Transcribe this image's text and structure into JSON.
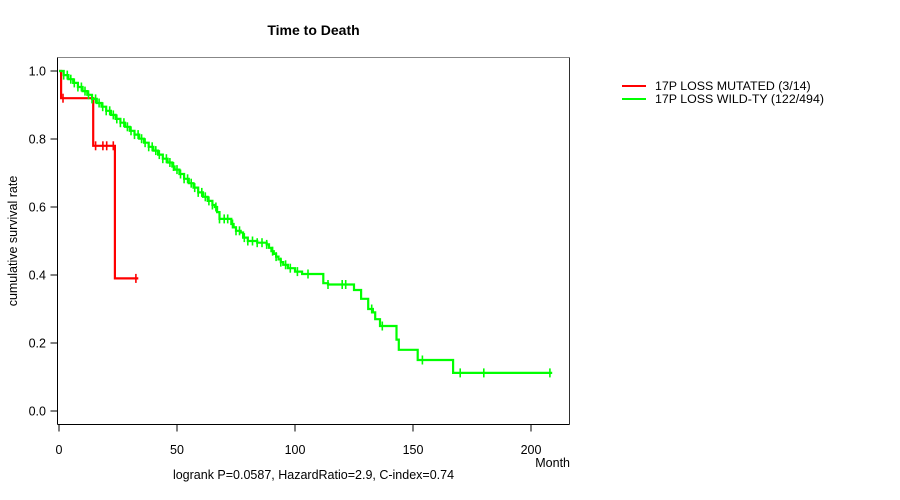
{
  "chart_data": {
    "type": "line",
    "variant": "kaplan_meier_step",
    "title": "Time to Death",
    "xlabel": "Month",
    "ylabel": "cumulative survival rate",
    "footnote": "logrank P=0.0587, HazardRatio=2.9, C-index=0.74",
    "xlim": [
      0,
      216
    ],
    "ylim": [
      0.0,
      1.0
    ],
    "grid": false,
    "legend_position": "right-outside",
    "x_ticks": [
      0,
      50,
      100,
      150,
      200
    ],
    "x_tick_labels": [
      "0",
      "50",
      "100",
      "150",
      "200"
    ],
    "y_ticks": [
      1.0,
      0.8,
      0.6,
      0.4,
      0.2,
      0.0
    ],
    "y_tick_labels": [
      "1.0",
      "0.8",
      "0.6",
      "0.4",
      "0.2",
      "0.0"
    ],
    "axis_colors": {
      "left": "#000000",
      "bottom": "#000000",
      "top": "#878787",
      "right": "#2f2f2f"
    },
    "series": [
      {
        "key": "mutated",
        "name": "17P LOSS MUTATED (3/14)",
        "color": "#ff0000",
        "steps": [
          [
            0,
            1.0
          ],
          [
            0.9,
            0.92
          ],
          [
            14.5,
            0.78
          ],
          [
            23.7,
            0.39
          ],
          [
            33.6,
            0.39
          ]
        ],
        "censor_months": [
          1.7,
          15.5,
          18.6,
          20.2,
          23.0,
          32.6
        ]
      },
      {
        "key": "wildtype",
        "name": "17P LOSS WILD-TY (122/494)",
        "color": "#00ff00",
        "steps": [
          [
            0,
            1.0
          ],
          [
            2,
            0.988
          ],
          [
            4,
            0.976
          ],
          [
            6,
            0.965
          ],
          [
            8,
            0.953
          ],
          [
            10,
            0.941
          ],
          [
            12,
            0.93
          ],
          [
            14,
            0.918
          ],
          [
            16,
            0.906
          ],
          [
            18,
            0.895
          ],
          [
            20,
            0.883
          ],
          [
            22,
            0.871
          ],
          [
            24,
            0.859
          ],
          [
            26,
            0.848
          ],
          [
            28,
            0.836
          ],
          [
            30,
            0.824
          ],
          [
            32,
            0.813
          ],
          [
            34,
            0.801
          ],
          [
            36,
            0.789
          ],
          [
            38,
            0.777
          ],
          [
            40,
            0.766
          ],
          [
            42,
            0.754
          ],
          [
            44,
            0.742
          ],
          [
            46,
            0.731
          ],
          [
            48,
            0.719
          ],
          [
            49,
            0.71
          ],
          [
            51,
            0.697
          ],
          [
            53,
            0.683
          ],
          [
            55,
            0.67
          ],
          [
            57,
            0.657
          ],
          [
            59,
            0.643
          ],
          [
            61,
            0.63
          ],
          [
            63,
            0.618
          ],
          [
            65,
            0.606
          ],
          [
            66,
            0.6
          ],
          [
            67,
            0.585
          ],
          [
            68,
            0.565
          ],
          [
            73,
            0.55
          ],
          [
            74,
            0.54
          ],
          [
            75,
            0.53
          ],
          [
            77,
            0.525
          ],
          [
            78,
            0.51
          ],
          [
            80,
            0.5
          ],
          [
            84,
            0.495
          ],
          [
            88,
            0.49
          ],
          [
            89,
            0.48
          ],
          [
            90,
            0.47
          ],
          [
            91,
            0.462
          ],
          [
            92,
            0.454
          ],
          [
            93,
            0.446
          ],
          [
            94,
            0.438
          ],
          [
            95,
            0.43
          ],
          [
            97,
            0.42
          ],
          [
            100,
            0.41
          ],
          [
            103,
            0.403
          ],
          [
            112,
            0.376
          ],
          [
            114,
            0.372
          ],
          [
            125,
            0.356
          ],
          [
            128,
            0.33
          ],
          [
            131,
            0.3
          ],
          [
            133,
            0.29
          ],
          [
            134,
            0.27
          ],
          [
            136,
            0.25
          ],
          [
            143,
            0.21
          ],
          [
            144,
            0.18
          ],
          [
            152,
            0.15
          ],
          [
            167,
            0.112
          ],
          [
            209,
            0.112
          ]
        ],
        "censor_months": [
          2,
          3.5,
          5,
          6.5,
          8,
          9.5,
          11,
          12.5,
          14,
          15.5,
          17,
          18.5,
          20,
          21.5,
          23,
          24.5,
          26,
          27.5,
          29,
          30.5,
          32,
          33.5,
          35,
          36.5,
          38,
          39.5,
          41,
          42.5,
          44,
          45.5,
          47,
          48.5,
          50,
          51.5,
          53,
          54.5,
          56,
          57.5,
          59,
          60.5,
          62,
          63.5,
          65,
          66.5,
          68,
          70,
          71.5,
          73.5,
          75,
          76.5,
          78.5,
          80,
          82,
          84,
          86,
          88,
          90.5,
          92,
          94,
          96,
          98,
          101,
          105.5,
          114,
          120,
          121.5,
          132.5,
          137,
          154,
          170,
          180,
          208
        ]
      }
    ]
  }
}
